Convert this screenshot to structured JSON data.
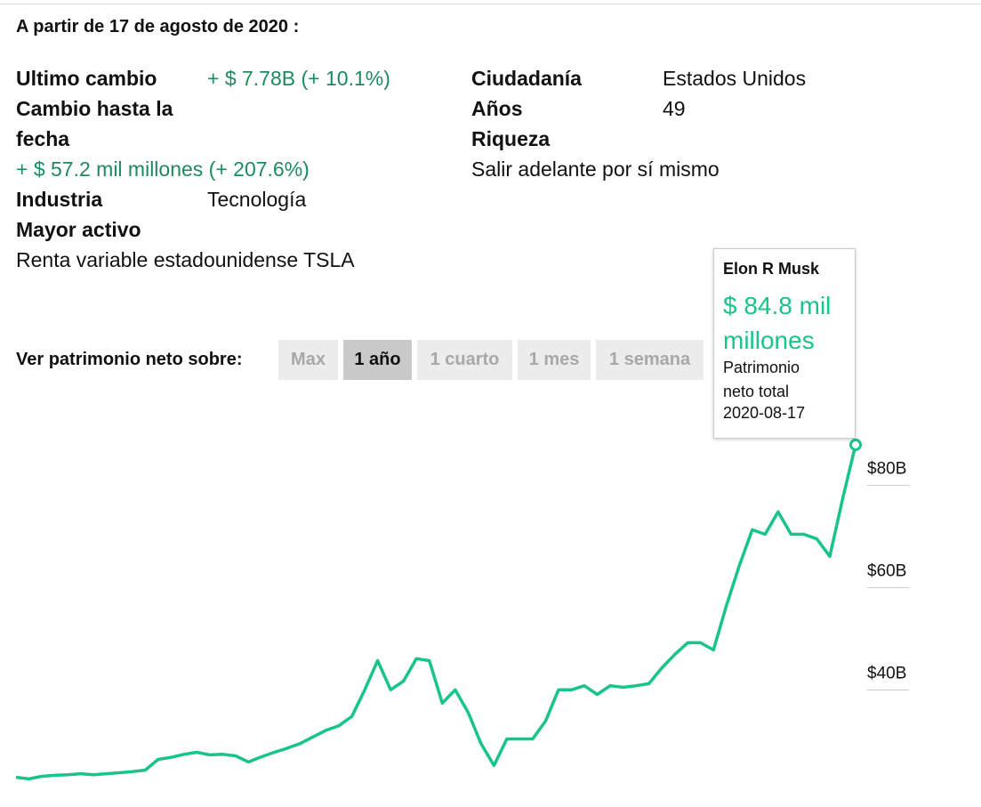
{
  "header": {
    "as_of": "A partir de 17 de agosto de 2020 :"
  },
  "left": {
    "last_change_label": "Ultimo cambio",
    "last_change_value": "+ $ 7.78B (+ 10.1%)",
    "ytd_label": "Cambio hasta la fecha",
    "ytd_value": "+ $ 57.2 mil millones (+ 207.6%)",
    "industry_label": "Industria",
    "industry_value": "Tecnología",
    "asset_label": "Mayor activo",
    "asset_value": "Renta variable estadounidense TSLA"
  },
  "right": {
    "citizenship_label": "Ciudadanía",
    "citizenship_value": "Estados Unidos",
    "age_label": "Años",
    "age_value": "49",
    "wealth_label": "Riqueza",
    "wealth_value": "Salir adelante por sí mismo"
  },
  "range": {
    "label": "Ver patrimonio neto sobre:",
    "buttons": [
      "Max",
      "1 año",
      "1 cuarto",
      "1 mes",
      "1 semana"
    ],
    "active": 1
  },
  "tooltip": {
    "name": "Elon R Musk",
    "value": "$ 84.8 mil millones",
    "caption": "Patrimonio neto total",
    "date": "2020-08-17"
  },
  "chart_data": {
    "type": "line",
    "color": "#19c38c",
    "values": [
      19.8,
      19.5,
      20.0,
      20.2,
      20.3,
      20.5,
      20.3,
      20.5,
      20.7,
      20.9,
      21.2,
      23.3,
      23.7,
      24.3,
      24.7,
      24.2,
      24.3,
      24.0,
      22.8,
      23.8,
      24.7,
      25.5,
      26.4,
      27.7,
      29.0,
      29.9,
      31.7,
      36.9,
      42.6,
      36.9,
      38.6,
      43.0,
      42.6,
      34.3,
      36.9,
      32.5,
      26.4,
      22.1,
      27.3,
      27.3,
      27.3,
      30.8,
      36.9,
      36.9,
      37.7,
      36.0,
      37.7,
      37.4,
      37.7,
      38.1,
      41.2,
      43.8,
      46.1,
      46.1,
      44.7,
      53.4,
      61.2,
      68.2,
      67.3,
      71.7,
      67.3,
      67.3,
      66.4,
      63.0,
      74.3,
      84.8
    ],
    "ylim": [
      14,
      86
    ],
    "yticks": [
      {
        "value": 40,
        "label": "$40B"
      },
      {
        "value": 60,
        "label": "$60B"
      },
      {
        "value": 80,
        "label": "$80B"
      }
    ]
  }
}
